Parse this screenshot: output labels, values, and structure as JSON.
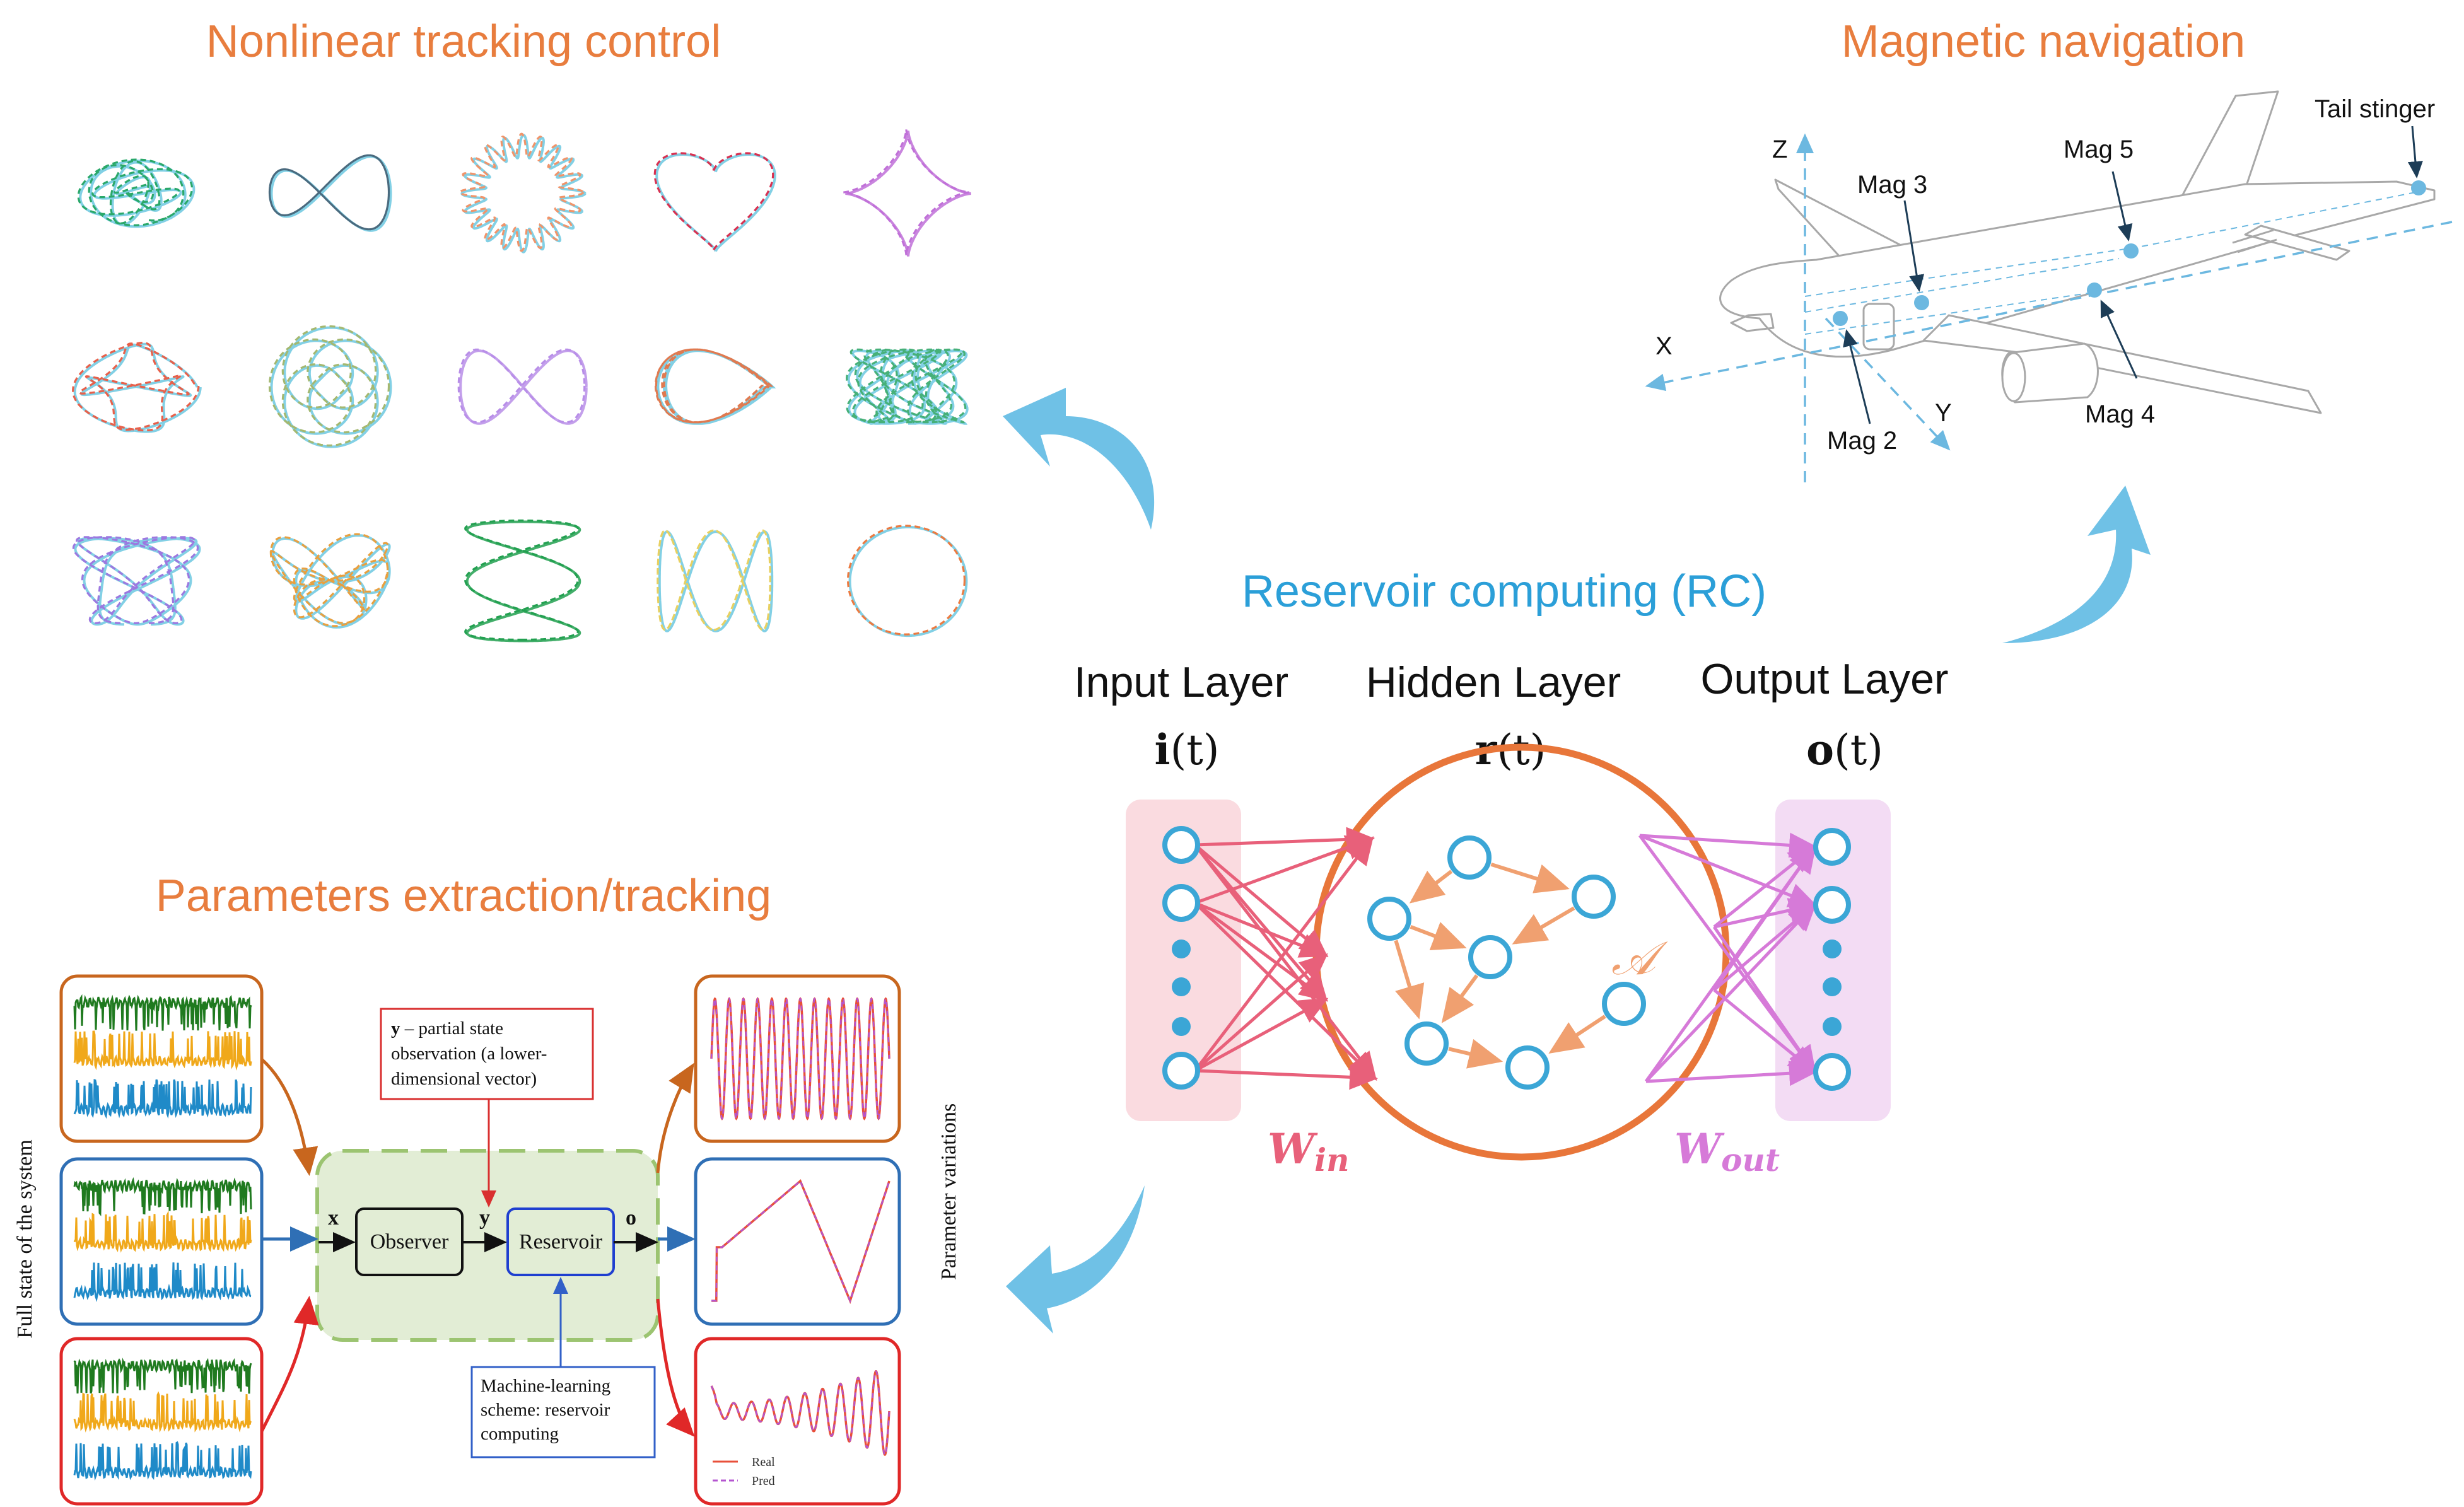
{
  "sections": {
    "nonlinear_tracking": "Nonlinear tracking control",
    "magnetic_navigation": "Magnetic navigation",
    "parameters_extraction": "Parameters extraction/tracking",
    "reservoir_computing": "Reservoir computing (RC)"
  },
  "network": {
    "input_layer": "Input Layer",
    "hidden_layer": "Hidden Layer",
    "output_layer": "Output Layer",
    "input_vec_bold": "i",
    "input_vec_arg": "(t)",
    "hidden_vec_bold": "r",
    "hidden_vec_arg": "(t)",
    "output_vec_bold": "o",
    "output_vec_arg": "(t)",
    "adjacency": "𝒜",
    "w_in_base": "W",
    "w_in_sub": "in",
    "w_out_base": "W",
    "w_out_sub": "out",
    "colors": {
      "input": "#e8607a",
      "output": "#d67ad8",
      "reservoir": "#e8763a",
      "nodes": "#3ba6d6",
      "internal": "#f0a070"
    }
  },
  "airplane": {
    "axis_x": "X",
    "axis_y": "Y",
    "axis_z": "Z",
    "mag2": "Mag 2",
    "mag3": "Mag 3",
    "mag4": "Mag 4",
    "mag5": "Mag 5",
    "tail_stinger": "Tail stinger"
  },
  "flow": {
    "input_x": "x",
    "observer": "Observer",
    "obs_y": "y",
    "reservoir": "Reservoir",
    "output_o": "o",
    "y_note_bold": "y",
    "y_note_line1": " – partial state",
    "y_note_line2": "observation (a lower-",
    "y_note_line3": "dimensional vector)",
    "ml_line1": "Machine-learning",
    "ml_line2": "scheme: reservoir",
    "ml_line3": "computing",
    "full_state": "Full state of the system",
    "param_variations": "Parameter variations",
    "legend_real": "Real",
    "legend_pred": "Pred"
  },
  "trajectory_grid": {
    "rows": 3,
    "cols": 5,
    "icons": [
      "lorenz-like",
      "helix",
      "torus",
      "heart",
      "astroid",
      "double-loop",
      "rose",
      "infinity",
      "teardrop",
      "chaotic",
      "chaotic-purple",
      "chaotic-orange",
      "lissajous",
      "zigzag",
      "circle"
    ]
  }
}
